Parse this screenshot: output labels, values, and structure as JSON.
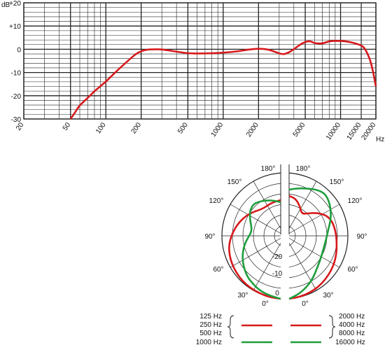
{
  "chart_data": [
    {
      "type": "line",
      "title": "",
      "xlabel": "Hz",
      "ylabel": "dB",
      "x_scale": "log",
      "xlim": [
        20,
        20000
      ],
      "ylim": [
        -30,
        20
      ],
      "grid": true,
      "x_ticks": [
        20,
        50,
        100,
        200,
        500,
        1000,
        2000,
        5000,
        10000,
        15000,
        20000
      ],
      "x_tick_labels": [
        "20",
        "50",
        "100",
        "200",
        "500",
        "1000",
        "2000",
        "5000",
        "10000",
        "15000",
        "20000"
      ],
      "y_ticks": [
        20,
        10,
        0,
        -10,
        -20,
        -30
      ],
      "y_tick_labels": [
        "+20",
        "+10",
        "0",
        "-10",
        "-20",
        "-30"
      ],
      "series": [
        {
          "color": "#d7191c",
          "x": [
            50,
            55,
            60,
            70,
            80,
            100,
            120,
            150,
            180,
            200,
            220,
            250,
            300,
            400,
            500,
            700,
            1000,
            1300,
            1600,
            2000,
            2400,
            2800,
            3200,
            3600,
            4000,
            4500,
            5000,
            5500,
            6000,
            7000,
            8000,
            9000,
            10000,
            12000,
            15000,
            16000,
            17000,
            18000,
            19000,
            20000
          ],
          "y": [
            -30,
            -27,
            -24,
            -21,
            -18,
            -14,
            -10,
            -5.5,
            -2,
            -0.8,
            -0.2,
            0,
            0,
            -1,
            -1.8,
            -1.8,
            -1.5,
            -1,
            -0.2,
            0.3,
            0,
            -1.2,
            -2.3,
            -1.5,
            0,
            2,
            3.2,
            3.6,
            2.6,
            2.4,
            3.5,
            3.6,
            3.6,
            3.2,
            1.8,
            0.5,
            -2,
            -5,
            -10,
            -16
          ]
        }
      ]
    },
    {
      "type": "polar",
      "title": "",
      "angle_labels_left": [
        "180°",
        "150°",
        "120°",
        "90°",
        "60°",
        "30°",
        "0°"
      ],
      "angle_labels_right": [
        "180°",
        "150°",
        "120°",
        "90°",
        "60°",
        "30°",
        "0°"
      ],
      "radial_labels": [
        "-20",
        "-10",
        "0"
      ],
      "left_half": {
        "legend_frequencies": [
          "125 Hz",
          "250 Hz",
          "500 Hz"
        ],
        "legend_frequencies_green": [
          "1000 Hz"
        ],
        "red": {
          "color": "#d7191c",
          "angles": [
            0,
            10,
            20,
            30,
            40,
            50,
            60,
            70,
            80,
            90,
            100,
            110,
            120,
            130,
            140,
            150,
            160,
            170,
            180
          ],
          "db": [
            0,
            -0.3,
            -0.8,
            -1.3,
            -1.8,
            -2.5,
            -3.2,
            -4.0,
            -5.0,
            -6.5,
            -8.0,
            -9.5,
            -11,
            -12.5,
            -14,
            -14.5,
            -14,
            -13.5,
            -13
          ]
        },
        "green": {
          "color": "#1e9e3c",
          "angles": [
            0,
            10,
            20,
            30,
            40,
            50,
            60,
            70,
            80,
            90,
            100,
            110,
            120,
            130,
            140,
            150,
            160,
            170,
            180
          ],
          "db": [
            0,
            -1,
            -2,
            -3.5,
            -5,
            -7,
            -9,
            -11,
            -13,
            -15,
            -16,
            -15,
            -13,
            -11,
            -10,
            -11,
            -12,
            -13,
            -14
          ]
        }
      },
      "right_half": {
        "legend_frequencies": [
          "2000 Hz",
          "4000 Hz",
          "8000 Hz"
        ],
        "legend_frequencies_green": [
          "16000 Hz"
        ],
        "red": {
          "color": "#d7191c",
          "angles": [
            0,
            10,
            20,
            30,
            40,
            50,
            60,
            70,
            80,
            90,
            100,
            110,
            120,
            130,
            140,
            150,
            160,
            170,
            180
          ],
          "db": [
            0,
            -0.5,
            -1.2,
            -2,
            -3,
            -4,
            -5,
            -6,
            -7,
            -7.5,
            -8,
            -8.5,
            -10,
            -13,
            -16,
            -18,
            -15,
            -12,
            -11
          ]
        },
        "green": {
          "color": "#1e9e3c",
          "angles": [
            0,
            10,
            20,
            30,
            40,
            50,
            60,
            70,
            80,
            90,
            100,
            110,
            120,
            130,
            140,
            150,
            160,
            170,
            180
          ],
          "db": [
            0,
            -2,
            -4.5,
            -7,
            -9.5,
            -11,
            -12,
            -12.5,
            -12.5,
            -12,
            -11,
            -9,
            -7,
            -5,
            -3.5,
            -4.5,
            -6,
            -7,
            -8
          ]
        }
      }
    }
  ]
}
